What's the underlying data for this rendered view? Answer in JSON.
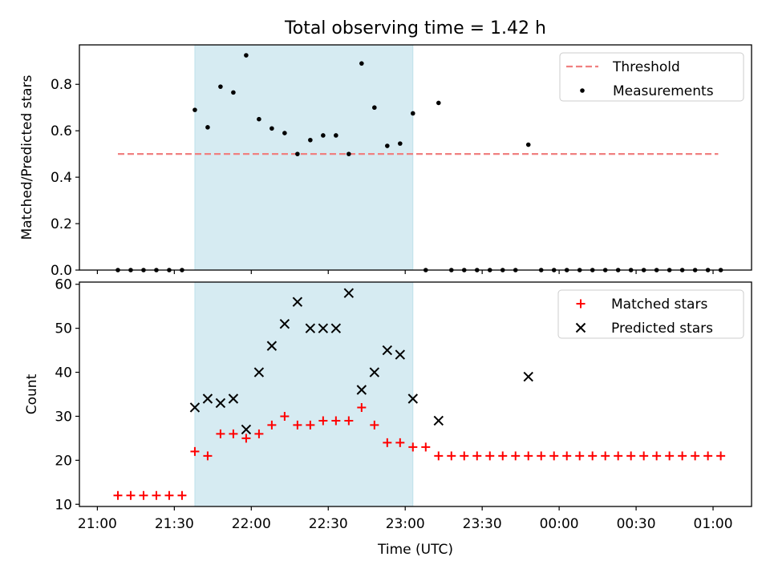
{
  "title": "Total observing time = 1.42 h",
  "chart_data": [
    {
      "type": "scatter",
      "ylabel": "Matched/Predicted stars",
      "xlim": [
        "20:53",
        "01:15"
      ],
      "ylim": [
        0,
        0.97
      ],
      "yticks": [
        0.0,
        0.2,
        0.4,
        0.6,
        0.8
      ],
      "ytick_labels": [
        "0.0",
        "0.2",
        "0.4",
        "0.6",
        "0.8"
      ],
      "shaded_interval": {
        "x": [
          "21:38",
          "23:03"
        ],
        "color": "#add8e6"
      },
      "threshold": {
        "name": "Threshold",
        "y": 0.5,
        "x": [
          "21:08",
          "01:02"
        ],
        "color": "#f08080",
        "style": "dashed"
      },
      "legend": {
        "placement": "top-right",
        "entries": [
          "Threshold",
          "Measurements"
        ]
      },
      "series": [
        {
          "name": "Measurements",
          "color": "#000000",
          "marker": "dot",
          "points": [
            [
              "21:08",
              0
            ],
            [
              "21:13",
              0
            ],
            [
              "21:18",
              0
            ],
            [
              "21:23",
              0
            ],
            [
              "21:28",
              0
            ],
            [
              "21:33",
              0
            ],
            [
              "21:38",
              0.69
            ],
            [
              "21:43",
              0.615
            ],
            [
              "21:48",
              0.79
            ],
            [
              "21:53",
              0.765
            ],
            [
              "21:58",
              0.925
            ],
            [
              "22:03",
              0.65
            ],
            [
              "22:08",
              0.61
            ],
            [
              "22:13",
              0.59
            ],
            [
              "22:18",
              0.5
            ],
            [
              "22:23",
              0.56
            ],
            [
              "22:28",
              0.58
            ],
            [
              "22:33",
              0.58
            ],
            [
              "22:38",
              0.5
            ],
            [
              "22:43",
              0.89
            ],
            [
              "22:48",
              0.7
            ],
            [
              "22:53",
              0.535
            ],
            [
              "22:58",
              0.545
            ],
            [
              "23:03",
              0.675
            ],
            [
              "23:08",
              0
            ],
            [
              "23:13",
              0.72
            ],
            [
              "23:18",
              0
            ],
            [
              "23:23",
              0
            ],
            [
              "23:28",
              0
            ],
            [
              "23:33",
              0
            ],
            [
              "23:38",
              0
            ],
            [
              "23:43",
              0
            ],
            [
              "23:48",
              0.54
            ],
            [
              "23:53",
              0
            ],
            [
              "23:58",
              0
            ],
            [
              "00:03",
              0
            ],
            [
              "00:08",
              0
            ],
            [
              "00:13",
              0
            ],
            [
              "00:18",
              0
            ],
            [
              "00:23",
              0
            ],
            [
              "00:28",
              0
            ],
            [
              "00:33",
              0
            ],
            [
              "00:38",
              0
            ],
            [
              "00:43",
              0
            ],
            [
              "00:48",
              0
            ],
            [
              "00:53",
              0
            ],
            [
              "00:58",
              0
            ],
            [
              "01:03",
              0
            ]
          ]
        }
      ]
    },
    {
      "type": "scatter",
      "xlabel": "Time (UTC)",
      "ylabel": "Count",
      "xlim": [
        "20:53",
        "01:15"
      ],
      "ylim": [
        9.5,
        60.5
      ],
      "yticks": [
        10,
        20,
        30,
        40,
        50,
        60
      ],
      "ytick_labels": [
        "10",
        "20",
        "30",
        "40",
        "50",
        "60"
      ],
      "xticks": [
        "21:00",
        "21:30",
        "22:00",
        "22:30",
        "23:00",
        "23:30",
        "00:00",
        "00:30",
        "01:00"
      ],
      "xtick_labels": [
        "21:00",
        "21:30",
        "22:00",
        "22:30",
        "23:00",
        "23:30",
        "00:00",
        "00:30",
        "01:00"
      ],
      "shaded_interval": {
        "x": [
          "21:38",
          "23:03"
        ],
        "color": "#add8e6"
      },
      "legend": {
        "placement": "top-right",
        "entries": [
          "Matched stars",
          "Predicted stars"
        ]
      },
      "series": [
        {
          "name": "Matched stars",
          "color": "#ff0000",
          "marker": "plus",
          "points": [
            [
              "21:08",
              12
            ],
            [
              "21:13",
              12
            ],
            [
              "21:18",
              12
            ],
            [
              "21:23",
              12
            ],
            [
              "21:28",
              12
            ],
            [
              "21:33",
              12
            ],
            [
              "21:38",
              22
            ],
            [
              "21:43",
              21
            ],
            [
              "21:48",
              26
            ],
            [
              "21:53",
              26
            ],
            [
              "21:58",
              25
            ],
            [
              "22:03",
              26
            ],
            [
              "22:08",
              28
            ],
            [
              "22:13",
              30
            ],
            [
              "22:18",
              28
            ],
            [
              "22:23",
              28
            ],
            [
              "22:28",
              29
            ],
            [
              "22:33",
              29
            ],
            [
              "22:38",
              29
            ],
            [
              "22:43",
              32
            ],
            [
              "22:48",
              28
            ],
            [
              "22:53",
              24
            ],
            [
              "22:58",
              24
            ],
            [
              "23:03",
              23
            ],
            [
              "23:08",
              23
            ],
            [
              "23:13",
              21
            ],
            [
              "23:18",
              21
            ],
            [
              "23:23",
              21
            ],
            [
              "23:28",
              21
            ],
            [
              "23:33",
              21
            ],
            [
              "23:38",
              21
            ],
            [
              "23:43",
              21
            ],
            [
              "23:48",
              21
            ],
            [
              "23:53",
              21
            ],
            [
              "23:58",
              21
            ],
            [
              "00:03",
              21
            ],
            [
              "00:08",
              21
            ],
            [
              "00:13",
              21
            ],
            [
              "00:18",
              21
            ],
            [
              "00:23",
              21
            ],
            [
              "00:28",
              21
            ],
            [
              "00:33",
              21
            ],
            [
              "00:38",
              21
            ],
            [
              "00:43",
              21
            ],
            [
              "00:48",
              21
            ],
            [
              "00:53",
              21
            ],
            [
              "00:58",
              21
            ],
            [
              "01:03",
              21
            ]
          ]
        },
        {
          "name": "Predicted stars",
          "color": "#000000",
          "marker": "x",
          "points": [
            [
              "21:38",
              32
            ],
            [
              "21:43",
              34
            ],
            [
              "21:48",
              33
            ],
            [
              "21:53",
              34
            ],
            [
              "21:58",
              27
            ],
            [
              "22:03",
              40
            ],
            [
              "22:08",
              46
            ],
            [
              "22:13",
              51
            ],
            [
              "22:18",
              56
            ],
            [
              "22:23",
              50
            ],
            [
              "22:28",
              50
            ],
            [
              "22:33",
              50
            ],
            [
              "22:38",
              58
            ],
            [
              "22:43",
              36
            ],
            [
              "22:48",
              40
            ],
            [
              "22:53",
              45
            ],
            [
              "22:58",
              44
            ],
            [
              "23:03",
              34
            ],
            [
              "23:13",
              29
            ],
            [
              "23:48",
              39
            ]
          ]
        }
      ]
    }
  ]
}
